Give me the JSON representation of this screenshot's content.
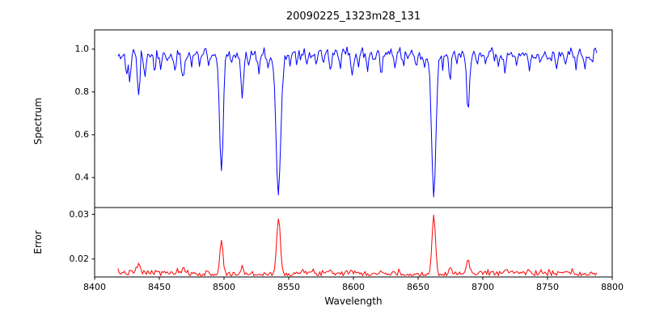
{
  "figure": {
    "title": "20090225_1323m28_131"
  },
  "axes": {
    "x_label": "Wavelength",
    "top_y_label": "Spectrum",
    "bottom_y_label": "Error",
    "x_tick_labels": [
      "8400",
      "8450",
      "8500",
      "8550",
      "8600",
      "8650",
      "8700",
      "8750",
      "8800"
    ],
    "top_y_tick_labels": [
      "1.0",
      "0.8",
      "0.6",
      "0.4"
    ],
    "bottom_y_tick_labels": [
      "0.03",
      "0.02"
    ]
  },
  "chart_data": [
    {
      "type": "line",
      "name": "spectrum",
      "title": "20090225_1323m28_131",
      "xlabel": "Wavelength",
      "ylabel": "Spectrum",
      "color": "#0000ff",
      "xlim": [
        8400,
        8800
      ],
      "ylim": [
        0.26,
        1.09
      ],
      "yticks": [
        0.4,
        0.6,
        0.8,
        1.0
      ],
      "x_start": 8418,
      "x_end": 8788,
      "x_step": 1,
      "continuum": 0.98,
      "noise_sigma": 0.014,
      "seed": 42,
      "absorption_lines": [
        [
          8424.5,
          0.08,
          0.9
        ],
        [
          8427.5,
          0.1,
          0.9
        ],
        [
          8433.9,
          0.2,
          1.0
        ],
        [
          8439.0,
          0.1,
          0.9
        ],
        [
          8446.5,
          0.09,
          0.8
        ],
        [
          8451.0,
          0.07,
          0.8
        ],
        [
          8455.5,
          0.06,
          0.7
        ],
        [
          8462.0,
          0.08,
          0.8
        ],
        [
          8468.4,
          0.12,
          1.0
        ],
        [
          8475.0,
          0.07,
          0.7
        ],
        [
          8481.5,
          0.06,
          0.7
        ],
        [
          8488.0,
          0.07,
          0.7
        ],
        [
          8498.0,
          0.55,
          1.4
        ],
        [
          8506.0,
          0.06,
          0.7
        ],
        [
          8514.1,
          0.22,
          1.0
        ],
        [
          8519.0,
          0.06,
          0.7
        ],
        [
          8526.7,
          0.1,
          0.9
        ],
        [
          8534.0,
          0.07,
          0.7
        ],
        [
          8542.1,
          0.65,
          1.9
        ],
        [
          8551.0,
          0.06,
          0.7
        ],
        [
          8556.0,
          0.05,
          0.7
        ],
        [
          8564.0,
          0.06,
          0.7
        ],
        [
          8571.0,
          0.05,
          0.7
        ],
        [
          8577.0,
          0.05,
          0.7
        ],
        [
          8582.3,
          0.08,
          0.9
        ],
        [
          8590.0,
          0.06,
          0.7
        ],
        [
          8598.8,
          0.1,
          0.9
        ],
        [
          8604.0,
          0.05,
          0.7
        ],
        [
          8611.0,
          0.08,
          0.8
        ],
        [
          8616.0,
          0.05,
          0.7
        ],
        [
          8621.6,
          0.1,
          0.9
        ],
        [
          8632.0,
          0.06,
          0.7
        ],
        [
          8639.0,
          0.05,
          0.7
        ],
        [
          8648.5,
          0.08,
          0.8
        ],
        [
          8655.0,
          0.05,
          0.7
        ],
        [
          8662.1,
          0.64,
          1.7
        ],
        [
          8668.5,
          0.06,
          0.7
        ],
        [
          8674.7,
          0.13,
          0.9
        ],
        [
          8680.0,
          0.06,
          0.7
        ],
        [
          8688.6,
          0.28,
          1.1
        ],
        [
          8696.0,
          0.05,
          0.7
        ],
        [
          8702.0,
          0.05,
          0.7
        ],
        [
          8712.0,
          0.07,
          0.8
        ],
        [
          8717.0,
          0.08,
          0.8
        ],
        [
          8726.0,
          0.05,
          0.7
        ],
        [
          8736.0,
          0.07,
          0.8
        ],
        [
          8744.0,
          0.05,
          0.7
        ],
        [
          8751.0,
          0.05,
          0.7
        ],
        [
          8757.0,
          0.06,
          0.7
        ],
        [
          8764.0,
          0.05,
          0.7
        ],
        [
          8772.0,
          0.07,
          0.8
        ],
        [
          8779.0,
          0.06,
          0.7
        ],
        [
          8784.0,
          0.05,
          0.7
        ]
      ]
    },
    {
      "type": "line",
      "name": "error",
      "xlabel": "Wavelength",
      "ylabel": "Error",
      "color": "#ff0000",
      "xlim": [
        8400,
        8800
      ],
      "ylim": [
        0.016,
        0.0315
      ],
      "yticks": [
        0.02,
        0.03
      ],
      "x_start": 8418,
      "x_end": 8788,
      "x_step": 1,
      "baseline": 0.0168,
      "noise_sigma": 0.00035,
      "seed": 7,
      "peaks": [
        [
          8433.9,
          0.0018,
          1.2
        ],
        [
          8468.4,
          0.0009,
          1.0
        ],
        [
          8498.0,
          0.0076,
          1.2
        ],
        [
          8514.1,
          0.0018,
          1.0
        ],
        [
          8542.1,
          0.0122,
          1.4
        ],
        [
          8582.3,
          0.0007,
          1.0
        ],
        [
          8598.8,
          0.0007,
          1.0
        ],
        [
          8621.6,
          0.0006,
          1.0
        ],
        [
          8662.1,
          0.0133,
          1.3
        ],
        [
          8674.7,
          0.0014,
          1.0
        ],
        [
          8688.6,
          0.0032,
          1.1
        ],
        [
          8717.0,
          0.0008,
          1.0
        ]
      ]
    }
  ]
}
